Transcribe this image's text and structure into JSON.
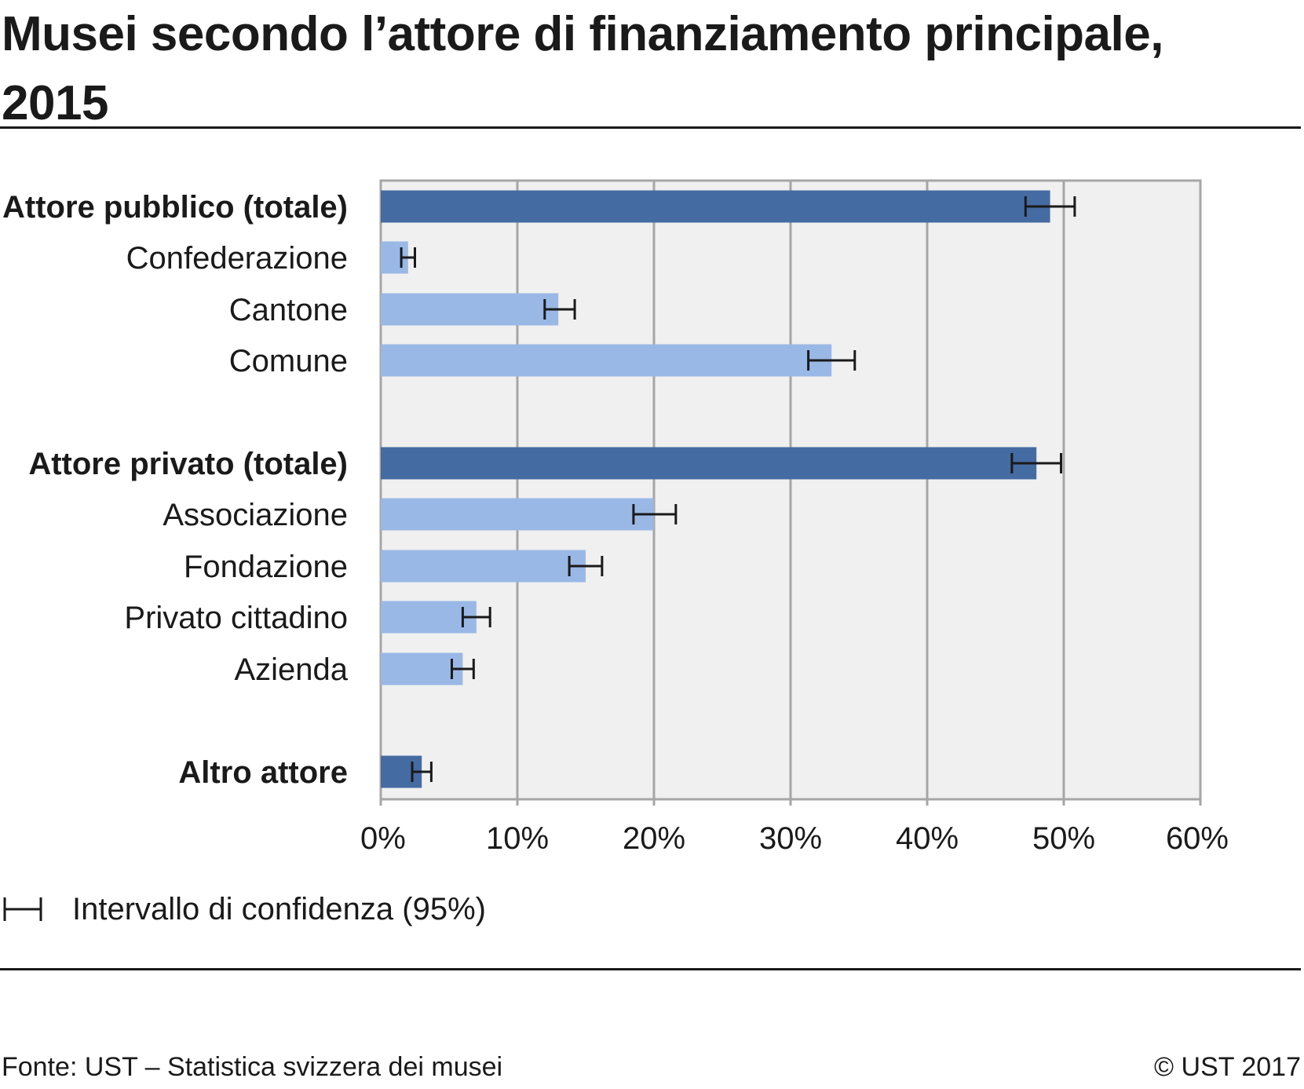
{
  "title": "Musei secondo l’attore di finanziamento principale, 2015",
  "colors": {
    "total_bar": "#456ba3",
    "sub_bar": "#9ab8e6",
    "plot_background": "#f0f0f0",
    "gridline": "#a6a6a6",
    "error_bar": "#1a1a1a"
  },
  "chart_data": {
    "type": "bar",
    "orientation": "horizontal",
    "categories": [
      "Attore pubblico (totale)",
      "Confederazione",
      "Cantone",
      "Comune",
      "Attore privato (totale)",
      "Associazione",
      "Fondazione",
      "Privato cittadino",
      "Azienda",
      "Altro attore"
    ],
    "category_is_total": [
      true,
      false,
      false,
      false,
      true,
      false,
      false,
      false,
      false,
      true
    ],
    "values": [
      49,
      2,
      13,
      33,
      48,
      20,
      15,
      7,
      6,
      3
    ],
    "ci_low": [
      47.2,
      1.5,
      12.0,
      31.3,
      46.2,
      18.5,
      13.8,
      6.0,
      5.2,
      2.3
    ],
    "ci_high": [
      50.8,
      2.5,
      14.2,
      34.7,
      49.8,
      21.6,
      16.2,
      8.0,
      6.8,
      3.7
    ],
    "xlim": [
      0,
      60
    ],
    "xticks": [
      "0%",
      "10%",
      "20%",
      "30%",
      "40%",
      "50%",
      "60%"
    ],
    "grid": true,
    "legend": {
      "label": "Intervallo di confidenza (95%)",
      "position": "bottom-left"
    }
  },
  "footer": {
    "source": "Fonte: UST – Statistica svizzera dei musei",
    "copyright": "© UST 2017"
  }
}
